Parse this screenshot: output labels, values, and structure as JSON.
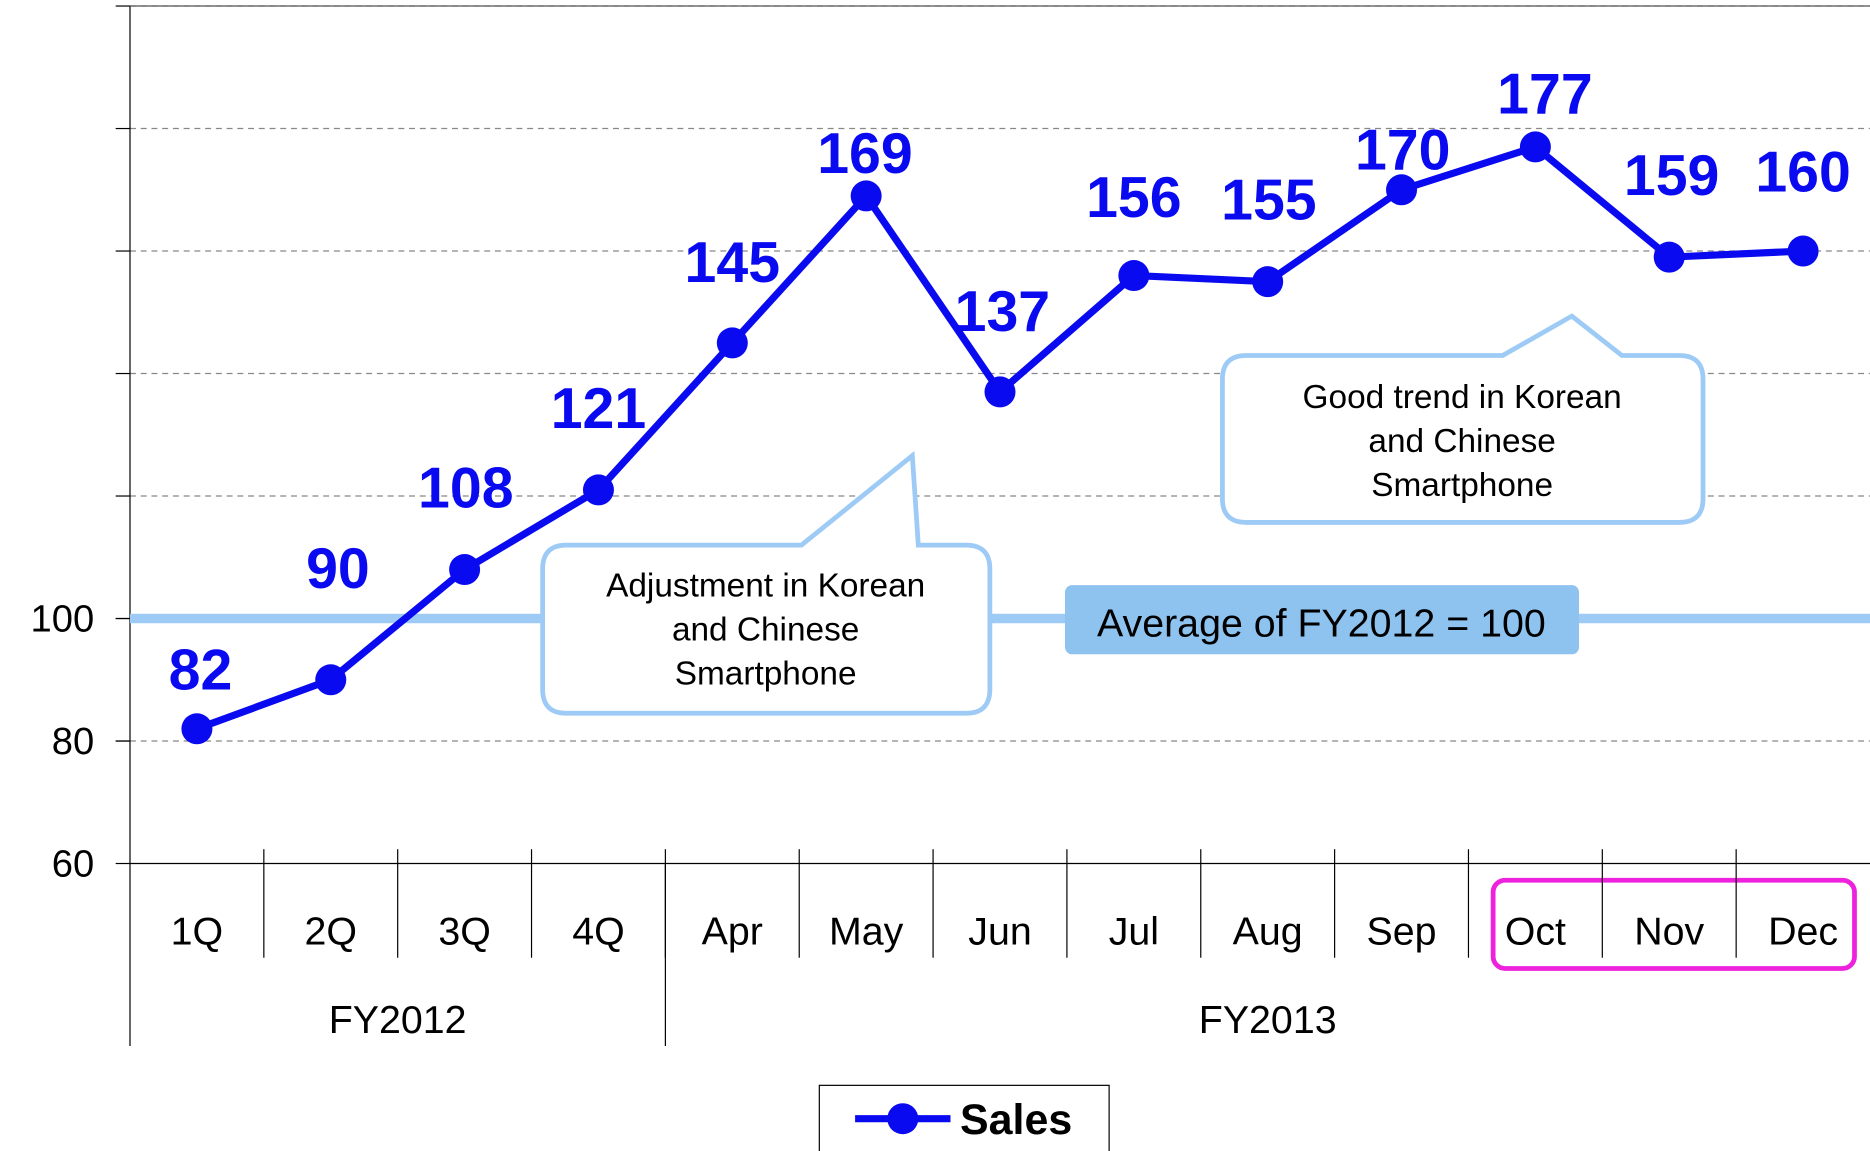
{
  "chart_data": {
    "type": "line",
    "categories": [
      "1Q",
      "2Q",
      "3Q",
      "4Q",
      "Apr",
      "May",
      "Jun",
      "Jul",
      "Aug",
      "Sep",
      "Oct",
      "Nov",
      "Dec"
    ],
    "groups": [
      {
        "label": "FY2012",
        "count": 4
      },
      {
        "label": "FY2013",
        "count": 9
      }
    ],
    "series": [
      {
        "name": "Sales",
        "color": "#0a0af0",
        "values": [
          82,
          90,
          108,
          121,
          145,
          169,
          137,
          156,
          155,
          170,
          177,
          159,
          160
        ]
      }
    ],
    "ylim": [
      60,
      200
    ],
    "yticks": [
      60,
      80,
      100
    ],
    "grid_lines": [
      80,
      100,
      120,
      140,
      160,
      180,
      200
    ],
    "grid": true,
    "reference_line": {
      "value": 100,
      "label": "Average of FY2012 = 100",
      "color": "#9ecbf5"
    },
    "annotations": [
      {
        "lines": [
          "Adjustment in Korean",
          "and Chinese",
          "Smartphone"
        ]
      },
      {
        "lines": [
          "Good trend in Korean",
          "and Chinese",
          "Smartphone"
        ]
      }
    ],
    "legend": "bottom"
  }
}
